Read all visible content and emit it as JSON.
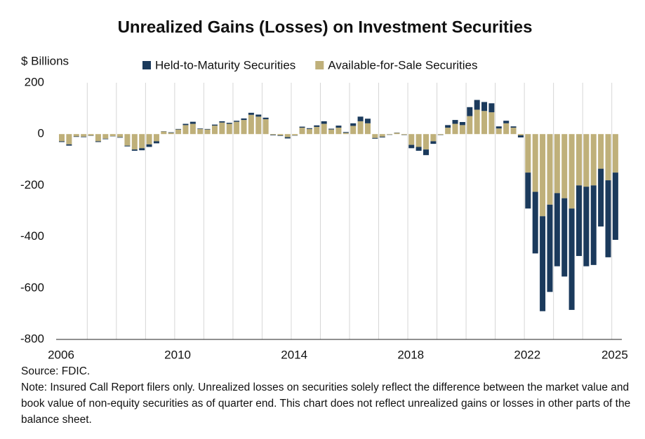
{
  "chart_data": {
    "type": "stacked_bar",
    "title": "Unrealized Gains (Losses) on Investment Securities",
    "y_label": "$ Billions",
    "source": "Source: FDIC.",
    "note": "Note: Insured Call Report filers only. Unrealized losses on securities solely reflect the difference between the market value and book value of non-equity securities as of quarter end. This chart does not reflect unrealized gains or losses in other parts of the balance sheet.",
    "categories": [
      "2006",
      null,
      null,
      null,
      null,
      null,
      null,
      null,
      null,
      null,
      null,
      null,
      null,
      null,
      null,
      null,
      "2010",
      null,
      null,
      null,
      null,
      null,
      null,
      null,
      null,
      null,
      null,
      null,
      null,
      null,
      null,
      null,
      "2014",
      null,
      null,
      null,
      null,
      null,
      null,
      null,
      null,
      null,
      null,
      null,
      null,
      null,
      null,
      null,
      "2018",
      null,
      null,
      null,
      null,
      null,
      null,
      null,
      null,
      null,
      null,
      null,
      null,
      null,
      null,
      null,
      "2022",
      null,
      null,
      null,
      null,
      null,
      null,
      null,
      null,
      null,
      null,
      null,
      "2025"
    ],
    "series": [
      {
        "name": "Available-for-Sale Securities",
        "color": "#bfb07a",
        "values": [
          -28,
          -40,
          -9,
          -10,
          -6,
          -28,
          -18,
          -8,
          -12,
          -45,
          -60,
          -55,
          -40,
          -28,
          10,
          5,
          18,
          35,
          40,
          20,
          18,
          33,
          45,
          40,
          48,
          55,
          75,
          68,
          58,
          -3,
          -5,
          -12,
          -5,
          25,
          20,
          28,
          40,
          18,
          25,
          5,
          32,
          50,
          42,
          -15,
          -10,
          -2,
          5,
          -3,
          -42,
          -50,
          -60,
          -28,
          -3,
          25,
          40,
          35,
          70,
          95,
          90,
          85,
          22,
          42,
          25,
          -5,
          -150,
          -225,
          -320,
          -275,
          -230,
          -250,
          -290,
          -200,
          -205,
          -200,
          -135,
          -180,
          -150
        ]
      },
      {
        "name": "Held-to-Maturity Securities",
        "color": "#1b3a5c",
        "values": [
          -3,
          -5,
          -2,
          -2,
          -1,
          -3,
          -2,
          -1,
          -2,
          -3,
          -5,
          -8,
          -10,
          -8,
          1,
          2,
          2,
          5,
          8,
          2,
          2,
          4,
          5,
          4,
          4,
          6,
          8,
          8,
          6,
          -2,
          -2,
          -5,
          -1,
          4,
          3,
          6,
          10,
          3,
          8,
          3,
          10,
          18,
          18,
          -3,
          -3,
          -1,
          1,
          -1,
          -13,
          -15,
          -22,
          -10,
          -1,
          10,
          15,
          12,
          35,
          38,
          35,
          35,
          8,
          10,
          5,
          -8,
          -140,
          -240,
          -370,
          -340,
          -285,
          -305,
          -395,
          -275,
          -310,
          -310,
          -225,
          -300,
          -262
        ]
      }
    ],
    "legend_order": [
      1,
      0
    ],
    "ylim": [
      -800,
      200
    ],
    "yticks": [
      -800,
      -600,
      -400,
      -200,
      0,
      200
    ],
    "grid": "x"
  }
}
